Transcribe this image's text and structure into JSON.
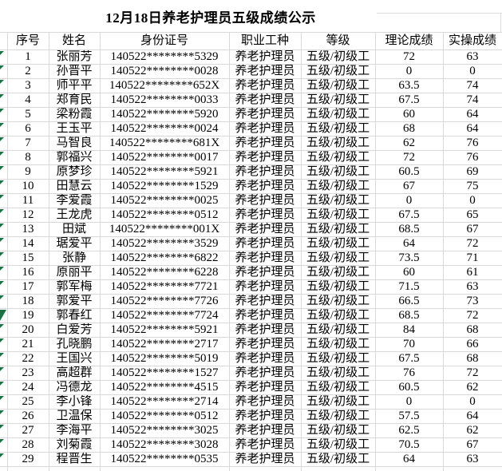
{
  "title": "12月18日养老护理员五级成绩公示",
  "table": {
    "headers": [
      "序号",
      "姓名",
      "身份证号",
      "职业工种",
      "等级",
      "理论成绩",
      "实操成绩"
    ],
    "rows": [
      {
        "no": "1",
        "name": "张丽芳",
        "id": "140522********5329",
        "job": "养老护理员",
        "level": "五级/初级工",
        "theory": "72",
        "practical": "63"
      },
      {
        "no": "2",
        "name": "孙晋平",
        "id": "140522********0028",
        "job": "养老护理员",
        "level": "五级/初级工",
        "theory": "0",
        "practical": "0"
      },
      {
        "no": "3",
        "name": "师平平",
        "id": "140522********652X",
        "job": "养老护理员",
        "level": "五级/初级工",
        "theory": "63.5",
        "practical": "74"
      },
      {
        "no": "4",
        "name": "郑育民",
        "id": "140522********0033",
        "job": "养老护理员",
        "level": "五级/初级工",
        "theory": "67.5",
        "practical": "74"
      },
      {
        "no": "5",
        "name": "梁粉霞",
        "id": "140522********5920",
        "job": "养老护理员",
        "level": "五级/初级工",
        "theory": "60",
        "practical": "64"
      },
      {
        "no": "6",
        "name": "王玉平",
        "id": "140522********0024",
        "job": "养老护理员",
        "level": "五级/初级工",
        "theory": "68",
        "practical": "64"
      },
      {
        "no": "7",
        "name": "马智良",
        "id": "140522********681X",
        "job": "养老护理员",
        "level": "五级/初级工",
        "theory": "62",
        "practical": "76"
      },
      {
        "no": "8",
        "name": "郭福兴",
        "id": "140522********0017",
        "job": "养老护理员",
        "level": "五级/初级工",
        "theory": "72",
        "practical": "76"
      },
      {
        "no": "9",
        "name": "原梦珍",
        "id": "140522********5921",
        "job": "养老护理员",
        "level": "五级/初级工",
        "theory": "60.5",
        "practical": "69"
      },
      {
        "no": "10",
        "name": "田慧云",
        "id": "140522********1529",
        "job": "养老护理员",
        "level": "五级/初级工",
        "theory": "67",
        "practical": "75"
      },
      {
        "no": "11",
        "name": "李爱霞",
        "id": "140522********0025",
        "job": "养老护理员",
        "level": "五级/初级工",
        "theory": "0",
        "practical": "0"
      },
      {
        "no": "12",
        "name": "王龙虎",
        "id": "140522********0512",
        "job": "养老护理员",
        "level": "五级/初级工",
        "theory": "67.5",
        "practical": "65"
      },
      {
        "no": "13",
        "name": "田斌",
        "id": "140522********001X",
        "job": "养老护理员",
        "level": "五级/初级工",
        "theory": "68.5",
        "practical": "67"
      },
      {
        "no": "14",
        "name": "琚爱平",
        "id": "140522********3529",
        "job": "养老护理员",
        "level": "五级/初级工",
        "theory": "64",
        "practical": "72"
      },
      {
        "no": "15",
        "name": "张静",
        "id": "140522********6822",
        "job": "养老护理员",
        "level": "五级/初级工",
        "theory": "73.5",
        "practical": "71"
      },
      {
        "no": "16",
        "name": "原丽平",
        "id": "140522********6228",
        "job": "养老护理员",
        "level": "五级/初级工",
        "theory": "60",
        "practical": "61"
      },
      {
        "no": "17",
        "name": "郭军梅",
        "id": "140522********7721",
        "job": "养老护理员",
        "level": "五级/初级工",
        "theory": "71.5",
        "practical": "63"
      },
      {
        "no": "18",
        "name": "郭爱平",
        "id": "140522********7726",
        "job": "养老护理员",
        "level": "五级/初级工",
        "theory": "66.5",
        "practical": "73"
      },
      {
        "no": "19",
        "name": "郭春红",
        "id": "140522********7724",
        "job": "养老护理员",
        "level": "五级/初级工",
        "theory": "68.5",
        "practical": "72"
      },
      {
        "no": "20",
        "name": "白爱芳",
        "id": "140522********5921",
        "job": "养老护理员",
        "level": "五级/初级工",
        "theory": "84",
        "practical": "68"
      },
      {
        "no": "21",
        "name": "孔晓鹏",
        "id": "140522********2717",
        "job": "养老护理员",
        "level": "五级/初级工",
        "theory": "70",
        "practical": "66"
      },
      {
        "no": "22",
        "name": "王国兴",
        "id": "140522********5019",
        "job": "养老护理员",
        "level": "五级/初级工",
        "theory": "67.5",
        "practical": "68"
      },
      {
        "no": "23",
        "name": "高超群",
        "id": "140522********1527",
        "job": "养老护理员",
        "level": "五级/初级工",
        "theory": "76",
        "practical": "72"
      },
      {
        "no": "24",
        "name": "冯德龙",
        "id": "140522********4515",
        "job": "养老护理员",
        "level": "五级/初级工",
        "theory": "60.5",
        "practical": "62"
      },
      {
        "no": "25",
        "name": "李小锋",
        "id": "140522********2714",
        "job": "养老护理员",
        "level": "五级/初级工",
        "theory": "0",
        "practical": "0"
      },
      {
        "no": "26",
        "name": "卫温保",
        "id": "140522********0512",
        "job": "养老护理员",
        "level": "五级/初级工",
        "theory": "57.5",
        "practical": "64"
      },
      {
        "no": "27",
        "name": "李海平",
        "id": "140522********3025",
        "job": "养老护理员",
        "level": "五级/初级工",
        "theory": "62.5",
        "practical": "62"
      },
      {
        "no": "28",
        "name": "刘菊霞",
        "id": "140522********3028",
        "job": "养老护理员",
        "level": "五级/初级工",
        "theory": "70.5",
        "practical": "67"
      },
      {
        "no": "29",
        "name": "程晋生",
        "id": "140522********0535",
        "job": "养老护理员",
        "level": "五级/初级工",
        "theory": "64",
        "practical": "63"
      }
    ]
  },
  "indicators": {
    "error_marker_color": "#1e7145",
    "large_marker_row": 19
  }
}
